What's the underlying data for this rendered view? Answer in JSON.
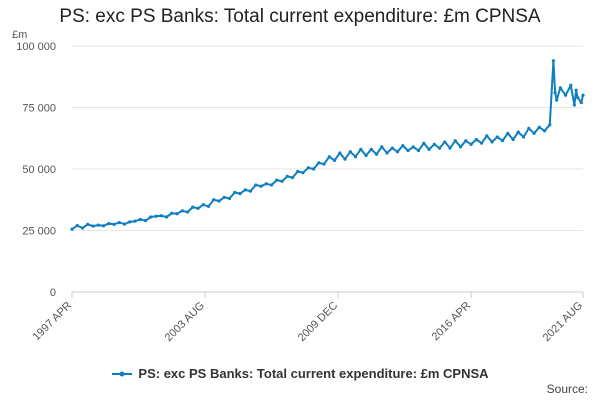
{
  "chart_data": {
    "type": "line",
    "title": "PS: exc PS Banks: Total current expenditure: £m CPNSA",
    "ylabel": "£m",
    "xlabel": "",
    "ylim": [
      0,
      100000
    ],
    "y_ticks": [
      0,
      25000,
      50000,
      75000,
      100000
    ],
    "y_tick_labels": [
      "0",
      "25 000",
      "50 000",
      "75 000",
      "100 000"
    ],
    "x_tick_labels": [
      "1997 APR",
      "2003 AUG",
      "2009 DEC",
      "2016 APR",
      "2021 AUG"
    ],
    "x_tick_positions": [
      1997.25,
      2003.58,
      2009.92,
      2016.25,
      2021.58
    ],
    "xlim": [
      1997.25,
      2021.58
    ],
    "grid": true,
    "legend_position": "bottom",
    "color": "#0f7fbf",
    "series": [
      {
        "name": "PS: exc PS Banks: Total current expenditure: £m CPNSA",
        "x": [
          1997.25,
          1997.5,
          1997.75,
          1998.0,
          1998.25,
          1998.5,
          1998.75,
          1999.0,
          1999.25,
          1999.5,
          1999.75,
          2000.0,
          2000.25,
          2000.5,
          2000.75,
          2001.0,
          2001.25,
          2001.5,
          2001.75,
          2002.0,
          2002.25,
          2002.5,
          2002.75,
          2003.0,
          2003.25,
          2003.5,
          2003.75,
          2004.0,
          2004.25,
          2004.5,
          2004.75,
          2005.0,
          2005.25,
          2005.5,
          2005.75,
          2006.0,
          2006.25,
          2006.5,
          2006.75,
          2007.0,
          2007.25,
          2007.5,
          2007.75,
          2008.0,
          2008.25,
          2008.5,
          2008.75,
          2009.0,
          2009.25,
          2009.5,
          2009.75,
          2010.0,
          2010.25,
          2010.5,
          2010.75,
          2011.0,
          2011.25,
          2011.5,
          2011.75,
          2012.0,
          2012.25,
          2012.5,
          2012.75,
          2013.0,
          2013.25,
          2013.5,
          2013.75,
          2014.0,
          2014.25,
          2014.5,
          2014.75,
          2015.0,
          2015.25,
          2015.5,
          2015.75,
          2016.0,
          2016.25,
          2016.5,
          2016.75,
          2017.0,
          2017.25,
          2017.5,
          2017.75,
          2018.0,
          2018.25,
          2018.5,
          2018.75,
          2019.0,
          2019.25,
          2019.5,
          2019.75,
          2020.0,
          2020.17,
          2020.25,
          2020.33,
          2020.5,
          2020.75,
          2021.0,
          2021.17,
          2021.25,
          2021.33,
          2021.5,
          2021.58
        ],
        "values": [
          25500,
          27000,
          26000,
          27500,
          26800,
          27200,
          26900,
          27800,
          27500,
          28200,
          27600,
          28500,
          28800,
          29500,
          29000,
          30500,
          30800,
          31000,
          30500,
          32000,
          31800,
          33000,
          32500,
          34500,
          34000,
          35500,
          34800,
          37500,
          37000,
          38500,
          38000,
          40500,
          40000,
          41500,
          41000,
          43500,
          43000,
          44000,
          43500,
          45500,
          45000,
          47000,
          46500,
          49000,
          48500,
          50500,
          50000,
          52500,
          52000,
          55000,
          53500,
          56500,
          54000,
          57000,
          55000,
          58000,
          55500,
          58000,
          56000,
          59000,
          56500,
          58500,
          57000,
          59500,
          57500,
          59000,
          57500,
          60500,
          58000,
          60000,
          58500,
          61000,
          58500,
          61500,
          59000,
          61500,
          60000,
          62000,
          60500,
          63500,
          61000,
          63000,
          61500,
          64500,
          62000,
          65000,
          63000,
          66500,
          64500,
          67000,
          65500,
          68000,
          94000,
          81000,
          78000,
          83000,
          80000,
          84000,
          76000,
          82000,
          79000,
          77000,
          80000
        ]
      }
    ]
  },
  "legend": {
    "label": "PS: exc PS Banks: Total current expenditure: £m CPNSA"
  },
  "source_label": "Source:"
}
